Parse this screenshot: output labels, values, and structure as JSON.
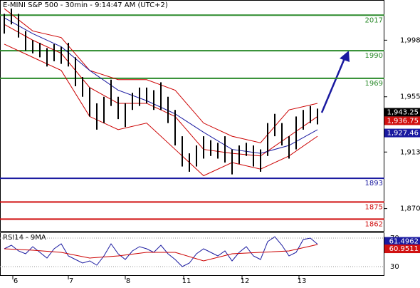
{
  "chart_data": [
    {
      "type": "ohlc",
      "title": "E-MINI S&P 500 - 30min - 9:14:47 AM (UTC+2)",
      "color": "#000000",
      "high": [
        2018,
        2022,
        2018,
        2005,
        1998,
        1996,
        1992,
        1995,
        1993,
        1996,
        1985,
        1970,
        1962,
        1950,
        1955,
        1968,
        1955,
        1950,
        1958,
        1962,
        1962,
        1960,
        1966,
        1955,
        1945,
        1925,
        1912,
        1918,
        1925,
        1922,
        1920,
        1925,
        1915,
        1918,
        1920,
        1918,
        1915,
        1935,
        1942,
        1935,
        1925,
        1940,
        1945,
        1948,
        1946
      ],
      "low": [
        2003,
        2010,
        2000,
        1990,
        1988,
        1985,
        1978,
        1982,
        1980,
        1978,
        1963,
        1955,
        1940,
        1930,
        1935,
        1948,
        1938,
        1932,
        1945,
        1948,
        1950,
        1945,
        1945,
        1935,
        1918,
        1902,
        1898,
        1902,
        1908,
        1910,
        1908,
        1905,
        1896,
        1904,
        1910,
        1902,
        1898,
        1910,
        1925,
        1918,
        1908,
        1915,
        1930,
        1935,
        1934
      ],
      "series": [
        {
          "color": "#cc0000",
          "x": [
            0,
            4,
            8,
            12,
            16,
            20,
            24,
            28,
            32,
            36,
            40,
            44
          ],
          "values": [
            2022,
            2005,
            2000,
            1975,
            1968,
            1968,
            1960,
            1935,
            1925,
            1920,
            1945,
            1950
          ]
        },
        {
          "color": "#cc0000",
          "x": [
            0,
            4,
            8,
            12,
            16,
            20,
            24,
            28,
            32,
            36,
            40,
            44
          ],
          "values": [
            1995,
            1985,
            1975,
            1940,
            1930,
            1935,
            1915,
            1895,
            1905,
            1900,
            1910,
            1925
          ]
        },
        {
          "color": "#cc0000",
          "x": [
            0,
            4,
            8,
            12,
            16,
            20,
            24,
            28,
            32,
            36,
            40,
            44
          ],
          "values": [
            2010,
            1998,
            1988,
            1962,
            1950,
            1950,
            1940,
            1915,
            1912,
            1910,
            1925,
            1940
          ]
        },
        {
          "color": "#1a1aa0",
          "x": [
            0,
            4,
            8,
            12,
            16,
            20,
            24,
            28,
            32,
            36,
            40,
            44
          ],
          "values": [
            2015,
            2003,
            1993,
            1975,
            1960,
            1952,
            1942,
            1928,
            1915,
            1912,
            1918,
            1930
          ]
        }
      ],
      "levels": [
        {
          "value": 2017,
          "color": "#2a8a2a"
        },
        {
          "value": 1990,
          "color": "#2a8a2a"
        },
        {
          "value": 1969,
          "color": "#2a8a2a"
        },
        {
          "value": 1893,
          "color": "#1a1aa0"
        },
        {
          "value": 1875,
          "color": "#d01010"
        },
        {
          "value": 1862,
          "color": "#d01010"
        }
      ],
      "last_labels": [
        {
          "value": 1943.25,
          "label": "1,943.25",
          "color": "#000000"
        },
        {
          "value": 1936.75,
          "label": "1,936.75",
          "color": "#d01010"
        },
        {
          "value": 1927.46,
          "label": "1,927.46",
          "color": "#1a1aa0"
        }
      ],
      "ylim": [
        1853,
        2028
      ],
      "yticks": [
        {
          "value": 1998,
          "label": "1,998"
        },
        {
          "value": 1955,
          "label": "1,955"
        },
        {
          "value": 1913,
          "label": "1,913"
        },
        {
          "value": 1870,
          "label": "1,870"
        }
      ],
      "xlim": [
        -0.6,
        53.4
      ],
      "xticks": [
        {
          "value": 1.6,
          "label": "6"
        },
        {
          "value": 9.4,
          "label": "7"
        },
        {
          "value": 17.4,
          "label": "8"
        },
        {
          "value": 25.6,
          "label": "11"
        },
        {
          "value": 33.8,
          "label": "12"
        },
        {
          "value": 41.8,
          "label": "13"
        }
      ]
    },
    {
      "type": "line",
      "title": "RSI14 - 9MA",
      "ylim": [
        18,
        77
      ],
      "yticks": [
        70,
        30
      ],
      "xlim": [
        -0.6,
        53.4
      ],
      "series": [
        {
          "color": "#1a1aa0",
          "values": [
            55,
            60,
            52,
            48,
            58,
            50,
            42,
            55,
            62,
            45,
            40,
            35,
            38,
            32,
            45,
            62,
            48,
            40,
            52,
            58,
            55,
            50,
            60,
            48,
            40,
            30,
            35,
            48,
            55,
            50,
            45,
            52,
            38,
            50,
            58,
            45,
            40,
            65,
            72,
            60,
            45,
            50,
            68,
            70,
            61.5
          ]
        },
        {
          "color": "#cc0000",
          "x": [
            0,
            4,
            8,
            12,
            16,
            20,
            24,
            28,
            32,
            36,
            40,
            44
          ],
          "values": [
            55,
            53,
            50,
            42,
            45,
            50,
            50,
            38,
            48,
            50,
            52,
            61
          ]
        }
      ],
      "last_labels": [
        {
          "value": 61.4962,
          "color": "#1a1aa0"
        },
        {
          "value": 60.9511,
          "color": "#d01010"
        }
      ]
    }
  ]
}
